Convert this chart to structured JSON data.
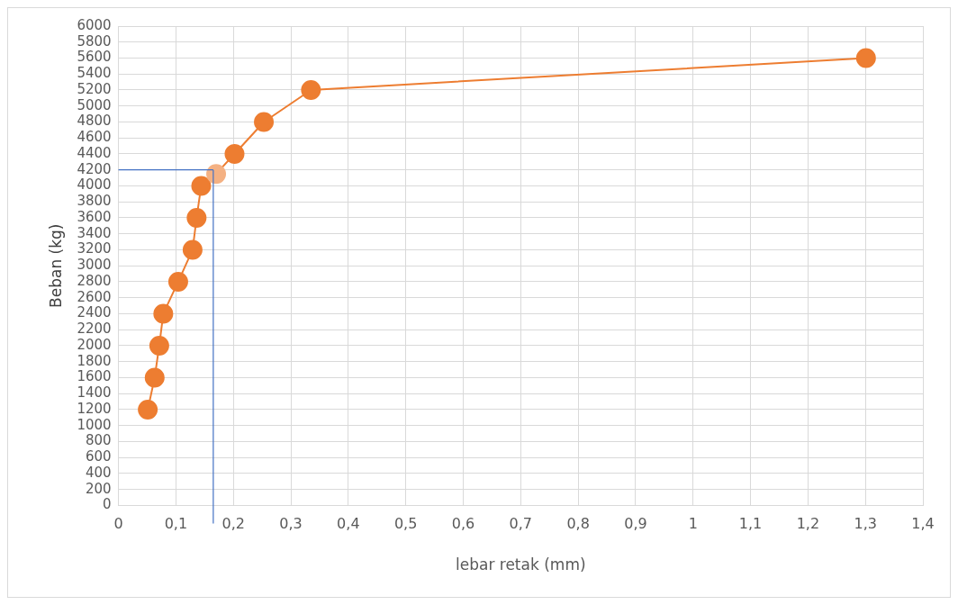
{
  "chart_data": {
    "type": "line",
    "xlabel": "lebar retak (mm)",
    "ylabel": "Beban (kg)",
    "x": [
      0.051,
      0.063,
      0.071,
      0.078,
      0.104,
      0.129,
      0.136,
      0.144,
      0.17,
      0.202,
      0.253,
      0.335,
      1.301
    ],
    "series": [
      {
        "color": "#ed7d31",
        "colors": [
          "#ed7d31",
          "#ed7d31",
          "#ed7d31",
          "#ed7d31",
          "#ed7d31",
          "#ed7d31",
          "#ed7d31",
          "#ed7d31",
          "#f4b183",
          "#ed7d31",
          "#ed7d31",
          "#ed7d31",
          "#ed7d31"
        ],
        "values": [
          1200,
          1600,
          2000,
          2400,
          2800,
          3200,
          3600,
          4000,
          4150,
          4400,
          4800,
          5200,
          5600
        ]
      }
    ],
    "xlim": [
      0,
      1.4
    ],
    "xticks": [
      0,
      {
        "value": 0.1,
        "label": "0,1"
      },
      {
        "value": 0.2,
        "label": "0,2"
      },
      {
        "value": 0.3,
        "label": "0,3"
      },
      {
        "value": 0.4,
        "label": "0,4"
      },
      {
        "value": 0.5,
        "label": "0,5"
      },
      {
        "value": 0.6,
        "label": "0,6"
      },
      {
        "value": 0.7,
        "label": "0,7"
      },
      {
        "value": 0.8,
        "label": "0,8"
      },
      {
        "value": 0.9,
        "label": "0,9"
      },
      1,
      {
        "value": 1.1,
        "label": "1,1"
      },
      {
        "value": 1.2,
        "label": "1,2"
      },
      {
        "value": 1.3,
        "label": "1,3"
      },
      {
        "value": 1.4,
        "label": "1,4"
      }
    ],
    "ylim": [
      0,
      6000
    ],
    "yticks": [
      0,
      200,
      400,
      600,
      800,
      1000,
      1200,
      1400,
      1600,
      1800,
      2000,
      2200,
      2400,
      2600,
      2800,
      3000,
      3200,
      3400,
      3600,
      3800,
      4000,
      4200,
      4400,
      4600,
      4800,
      5000,
      5200,
      5400,
      5600,
      5800,
      6000
    ],
    "ref_lines": [
      {
        "axis": "x",
        "value": 0.165,
        "color": "#4472c4"
      },
      {
        "axis": "y",
        "value": 4200,
        "color": "#4472c4"
      }
    ],
    "grid": true,
    "legend": false,
    "marker": "circle",
    "line_style": "solid"
  }
}
